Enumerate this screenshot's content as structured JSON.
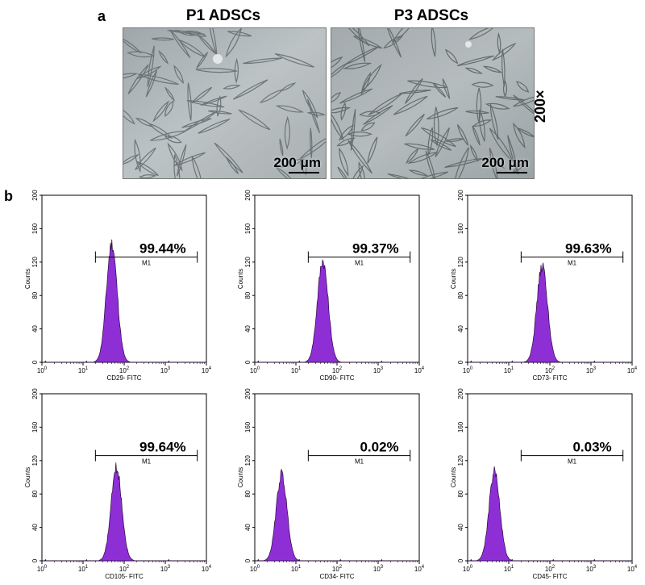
{
  "panel_a": {
    "letter": "a",
    "titles": [
      "P1 ADSCs",
      "P3 ADSCs"
    ],
    "scale_bar": "200 μm",
    "magnification": "200×"
  },
  "panel_b": {
    "letter": "b"
  },
  "chart_data": [
    {
      "type": "area",
      "marker": "CD29- FITC",
      "gate_label": "M1",
      "gate_percent": "99.44%",
      "gate_range": [
        20,
        6000
      ],
      "peak_x": 50,
      "peak_count": 148,
      "ylabel": "Counts",
      "xlabel": "CD29- FITC",
      "ylim": [
        0,
        200
      ],
      "xlim": [
        1,
        10000
      ],
      "xscale": "log",
      "yticks": [
        0,
        40,
        80,
        120,
        160,
        200
      ],
      "xticks": [
        "10^0",
        "10^1",
        "10^2",
        "10^3",
        "10^4"
      ]
    },
    {
      "type": "area",
      "marker": "CD90- FITC",
      "gate_label": "M1",
      "gate_percent": "99.37%",
      "gate_range": [
        20,
        6000
      ],
      "peak_x": 45,
      "peak_count": 127,
      "ylabel": "Counts",
      "xlabel": "CD90- FITC",
      "ylim": [
        0,
        200
      ],
      "xlim": [
        1,
        10000
      ],
      "xscale": "log",
      "yticks": [
        0,
        40,
        80,
        120,
        160,
        200
      ],
      "xticks": [
        "10^0",
        "10^1",
        "10^2",
        "10^3",
        "10^4"
      ]
    },
    {
      "type": "area",
      "marker": "CD73- FITC",
      "gate_label": "M1",
      "gate_percent": "99.63%",
      "gate_range": [
        20,
        6000
      ],
      "peak_x": 65,
      "peak_count": 120,
      "ylabel": "Counts",
      "xlabel": "CD73- FITC",
      "ylim": [
        0,
        200
      ],
      "xlim": [
        1,
        10000
      ],
      "xscale": "log",
      "yticks": [
        0,
        40,
        80,
        120,
        160,
        200
      ],
      "xticks": [
        "10^0",
        "10^1",
        "10^2",
        "10^3",
        "10^4"
      ]
    },
    {
      "type": "area",
      "marker": "CD105- FITC",
      "gate_label": "M1",
      "gate_percent": "99.64%",
      "gate_range": [
        20,
        6000
      ],
      "peak_x": 65,
      "peak_count": 116,
      "ylabel": "Counts",
      "xlabel": "CD105- FITC",
      "ylim": [
        0,
        200
      ],
      "xlim": [
        1,
        10000
      ],
      "xscale": "log",
      "yticks": [
        0,
        40,
        80,
        120,
        160,
        200
      ],
      "xticks": [
        "10^0",
        "10^1",
        "10^2",
        "10^3",
        "10^4"
      ]
    },
    {
      "type": "area",
      "marker": "CD34- FITC",
      "gate_label": "M1",
      "gate_percent": "0.02%",
      "gate_range": [
        20,
        6000
      ],
      "peak_x": 4.5,
      "peak_count": 108,
      "ylabel": "Counts",
      "xlabel": "CD34- FITC",
      "ylim": [
        0,
        200
      ],
      "xlim": [
        1,
        10000
      ],
      "xscale": "log",
      "yticks": [
        0,
        40,
        80,
        120,
        160,
        200
      ],
      "xticks": [
        "10^0",
        "10^1",
        "10^2",
        "10^3",
        "10^4"
      ]
    },
    {
      "type": "area",
      "marker": "CD45- FITC",
      "gate_label": "M1",
      "gate_percent": "0.03%",
      "gate_range": [
        20,
        6000
      ],
      "peak_x": 4.5,
      "peak_count": 112,
      "ylabel": "Counts",
      "xlabel": "CD45- FITC",
      "ylim": [
        0,
        200
      ],
      "xlim": [
        1,
        10000
      ],
      "xscale": "log",
      "yticks": [
        0,
        40,
        80,
        120,
        160,
        200
      ],
      "xticks": [
        "10^0",
        "10^1",
        "10^2",
        "10^3",
        "10^4"
      ]
    }
  ],
  "colors": {
    "fill": "#8e2fd6",
    "stroke": "#2a0a3d",
    "axis": "#000000"
  }
}
